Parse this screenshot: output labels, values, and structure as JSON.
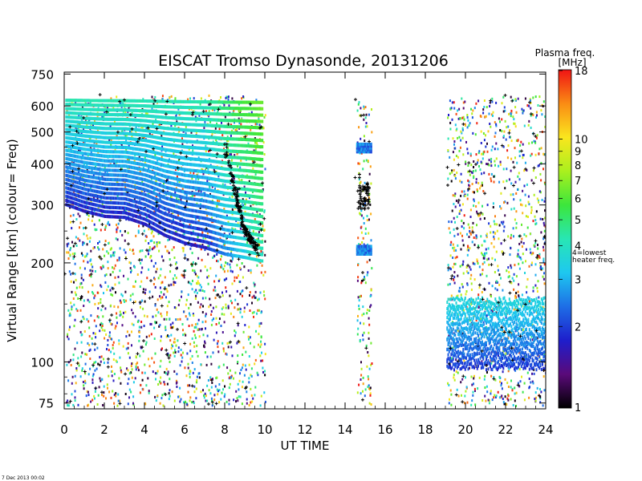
{
  "chart_data": {
    "type": "heatmap",
    "title": "EISCAT Tromso Dynasonde,  20131206",
    "xlabel": "UT TIME",
    "ylabel": "Virtual Range [km]    (colour= Freq)",
    "x_range": [
      0,
      24
    ],
    "x_ticks": [
      "0",
      "2",
      "4",
      "6",
      "8",
      "10",
      "12",
      "14",
      "16",
      "18",
      "20",
      "22",
      "24"
    ],
    "y_scale": "log",
    "y_range": [
      72,
      760
    ],
    "y_ticks": [
      "75",
      "100",
      "200",
      "300",
      "400",
      "500",
      "600",
      "750"
    ],
    "data_intervals_ut": [
      [
        0,
        10
      ],
      [
        14.5,
        15.3
      ],
      [
        19.0,
        24.0
      ]
    ],
    "f_layer_lower_edge_km": {
      "ut": [
        0,
        1,
        2,
        3,
        4,
        5,
        6,
        7,
        8,
        9,
        9.8
      ],
      "km": [
        305,
        290,
        280,
        278,
        265,
        245,
        232,
        225,
        215,
        210,
        205
      ]
    },
    "f_layer_upper_edge_km": {
      "ut": [
        0,
        2,
        4,
        6,
        8,
        9.8
      ],
      "km": [
        650,
        650,
        650,
        650,
        650,
        650
      ]
    },
    "critical_freq_trace_km": {
      "ut": [
        8.0,
        8.2,
        8.4,
        8.6,
        8.8,
        9.0,
        9.2,
        9.4,
        9.6
      ],
      "km": [
        460,
        400,
        350,
        310,
        280,
        255,
        240,
        230,
        220
      ]
    },
    "e_layer_region_km": {
      "ut": [
        19.0,
        24.0
      ],
      "top_km": 160,
      "bottom_km": 98
    },
    "colorbar": {
      "label": "Plasma freq.",
      "unit": "[MHz]",
      "scale": "log",
      "range": [
        1,
        18
      ],
      "ticks": [
        "1",
        "2",
        "3",
        "4",
        "5",
        "6",
        "7",
        "8",
        "9",
        "10",
        "18"
      ],
      "annotation": "4=lowest heater freq.",
      "annotation_line1": "4=lowest",
      "annotation_line2": "heater freq.",
      "colors": [
        "#000000",
        "#5a0a7a",
        "#1e1ecc",
        "#1e6ee6",
        "#1ec8f0",
        "#28e6b4",
        "#3ce63c",
        "#aaf01e",
        "#fae61e",
        "#fa8c14",
        "#f01414"
      ]
    }
  },
  "footer": {
    "timestamp": "7 Dec 2013 00:02"
  }
}
